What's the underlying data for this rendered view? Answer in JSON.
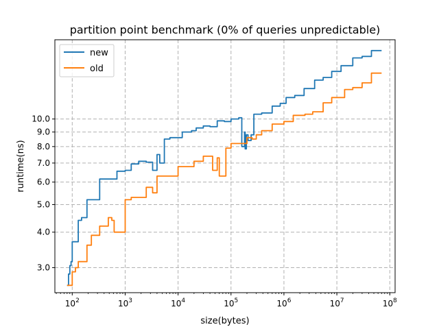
{
  "chart_data": {
    "type": "line",
    "title": "partition point benchmark (0% of queries unpredictable)",
    "xlabel": "size(bytes)",
    "ylabel": "runtime(ns)",
    "x_scale": "log",
    "y_scale": "log",
    "xlim": [
      47,
      126000000
    ],
    "ylim": [
      2.45,
      19.0
    ],
    "grid": true,
    "legend_position": "top-left",
    "x_ticks": [
      {
        "value": 100,
        "base": "10",
        "exp": "2"
      },
      {
        "value": 1000,
        "base": "10",
        "exp": "3"
      },
      {
        "value": 10000,
        "base": "10",
        "exp": "4"
      },
      {
        "value": 100000,
        "base": "10",
        "exp": "5"
      },
      {
        "value": 1000000,
        "base": "10",
        "exp": "6"
      },
      {
        "value": 10000000,
        "base": "10",
        "exp": "7"
      },
      {
        "value": 100000000,
        "base": "10",
        "exp": "8"
      }
    ],
    "y_ticks": [
      {
        "value": 3.0,
        "label": "3.0"
      },
      {
        "value": 4.0,
        "label": "4.0"
      },
      {
        "value": 5.0,
        "label": "5.0"
      },
      {
        "value": 6.0,
        "label": "6.0"
      },
      {
        "value": 7.0,
        "label": "7.0"
      },
      {
        "value": 8.0,
        "label": "8.0"
      },
      {
        "value": 9.0,
        "label": "9.0"
      },
      {
        "value": 10.0,
        "label": "10.0"
      }
    ],
    "series": [
      {
        "name": "new",
        "color": "#1f77b4",
        "x": [
          80,
          85,
          90,
          95,
          100,
          115,
          130,
          150,
          190,
          230,
          330,
          500,
          700,
          1000,
          1300,
          1800,
          2500,
          3300,
          4000,
          4500,
          5500,
          7000,
          8500,
          12000,
          18000,
          22000,
          30000,
          40000,
          55000,
          75000,
          100000,
          140000,
          160000,
          180000,
          185000,
          195000,
          210000,
          240000,
          270000,
          380000,
          600000,
          850000,
          1100000,
          1600000,
          2400000,
          3800000,
          5500000,
          8000000,
          12000000,
          20000000,
          30000000,
          45000000,
          70000000
        ],
        "y": [
          2.6,
          2.85,
          3.05,
          3.15,
          3.7,
          3.7,
          4.4,
          4.5,
          5.2,
          5.2,
          6.15,
          6.15,
          6.55,
          6.6,
          6.95,
          7.1,
          7.05,
          6.6,
          7.5,
          7.0,
          8.5,
          8.6,
          8.6,
          9.0,
          9.1,
          9.3,
          9.45,
          9.4,
          9.85,
          9.8,
          10.0,
          10.1,
          8.0,
          9.0,
          7.85,
          8.8,
          8.4,
          8.8,
          10.4,
          10.5,
          11.1,
          11.35,
          11.9,
          12.1,
          12.8,
          13.7,
          14.0,
          14.7,
          15.4,
          16.4,
          16.6,
          17.4,
          17.4
        ]
      },
      {
        "name": "old",
        "color": "#ff7f0e",
        "x": [
          80,
          90,
          100,
          115,
          130,
          150,
          190,
          230,
          330,
          480,
          560,
          620,
          700,
          1000,
          1300,
          1800,
          2500,
          3300,
          4000,
          5500,
          7000,
          10000,
          14000,
          20000,
          30000,
          40000,
          45000,
          55000,
          60000,
          70000,
          80000,
          100000,
          140000,
          180000,
          200000,
          250000,
          300000,
          380000,
          600000,
          1000000,
          1500000,
          2500000,
          3500000,
          5500000,
          8000000,
          14000000,
          20000000,
          30000000,
          45000000,
          70000000
        ],
        "y": [
          2.6,
          2.6,
          2.9,
          3.0,
          3.15,
          3.15,
          3.6,
          3.9,
          4.2,
          4.5,
          4.4,
          4.0,
          4.0,
          5.2,
          5.3,
          5.3,
          5.75,
          5.5,
          6.3,
          6.3,
          6.3,
          6.8,
          6.8,
          7.1,
          7.4,
          7.4,
          6.6,
          7.3,
          6.3,
          6.3,
          7.9,
          8.2,
          8.2,
          8.2,
          8.6,
          8.5,
          8.8,
          9.1,
          9.6,
          9.8,
          10.3,
          10.4,
          10.6,
          11.4,
          11.9,
          12.7,
          12.9,
          13.4,
          14.5,
          14.5
        ]
      }
    ]
  }
}
